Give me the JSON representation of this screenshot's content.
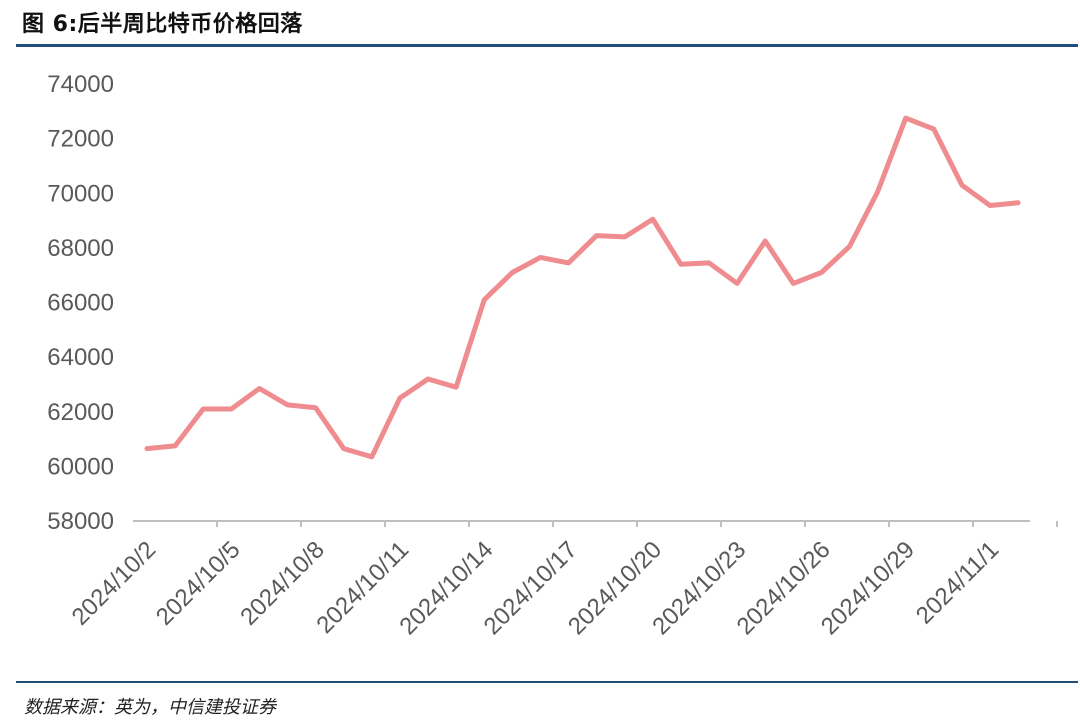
{
  "header": {
    "title": "图 6:后半周比特币价格回落"
  },
  "footer": {
    "source": "数据来源：英为，中信建投证券"
  },
  "colors": {
    "line": "#ef8c8f",
    "axis": "#bfbfbf",
    "rule": "#1f4e79"
  },
  "chart_data": {
    "type": "line",
    "title": "",
    "xlabel": "",
    "ylabel": "",
    "ylim": [
      58000,
      74000
    ],
    "yticks": [
      "74000",
      "72000",
      "70000",
      "68000",
      "66000",
      "64000",
      "62000",
      "60000",
      "58000"
    ],
    "xtick_labels": [
      "2024/10/2",
      "2024/10/5",
      "2024/10/8",
      "2024/10/11",
      "2024/10/14",
      "2024/10/17",
      "2024/10/20",
      "2024/10/23",
      "2024/10/26",
      "2024/10/29",
      "2024/11/1"
    ],
    "grid": false,
    "series": [
      {
        "x": [
          "2024/10/2",
          "2024/10/3",
          "2024/10/4",
          "2024/10/5",
          "2024/10/6",
          "2024/10/7",
          "2024/10/8",
          "2024/10/9",
          "2024/10/10",
          "2024/10/11",
          "2024/10/12",
          "2024/10/13",
          "2024/10/14",
          "2024/10/15",
          "2024/10/16",
          "2024/10/17",
          "2024/10/18",
          "2024/10/19",
          "2024/10/20",
          "2024/10/21",
          "2024/10/22",
          "2024/10/23",
          "2024/10/24",
          "2024/10/25",
          "2024/10/26",
          "2024/10/27",
          "2024/10/28",
          "2024/10/29",
          "2024/10/30",
          "2024/10/31",
          "2024/11/1",
          "2024/11/2"
        ],
        "values": [
          60650,
          60750,
          62100,
          62100,
          62850,
          62250,
          62150,
          60650,
          60350,
          62500,
          63200,
          62900,
          66100,
          67100,
          67650,
          67450,
          68450,
          68400,
          69050,
          67400,
          67450,
          66700,
          68250,
          66700,
          67100,
          68050,
          70050,
          72750,
          72350,
          70300,
          69550,
          69650
        ]
      }
    ]
  }
}
